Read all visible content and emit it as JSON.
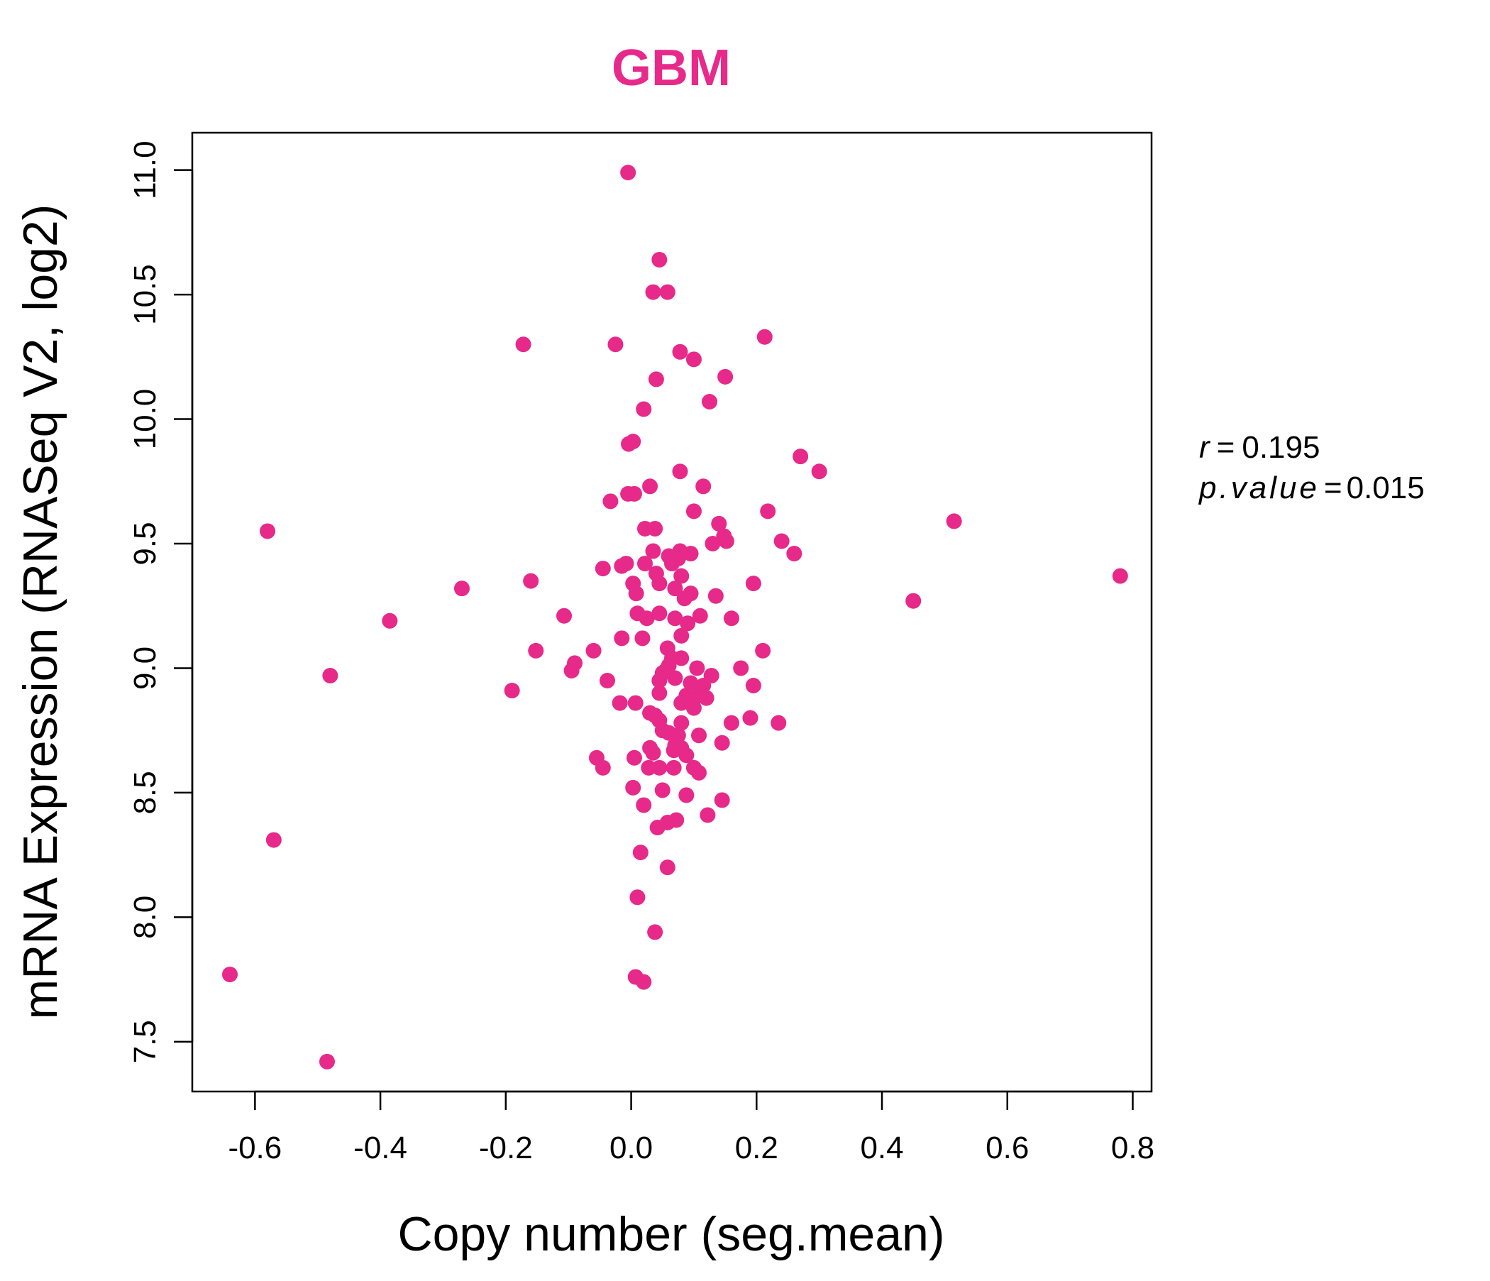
{
  "chart_data": {
    "type": "scatter",
    "title": "GBM",
    "xlabel": "Copy number (seg.mean)",
    "ylabel": "mRNA Expression (RNASeq V2, log2)",
    "xlim": [
      -0.7,
      0.83
    ],
    "ylim": [
      7.3,
      11.15
    ],
    "xticks": [
      "-0.6",
      "-0.4",
      "-0.2",
      "0.0",
      "0.2",
      "0.4",
      "0.6",
      "0.8"
    ],
    "xtick_values": [
      -0.6,
      -0.4,
      -0.2,
      0.0,
      0.2,
      0.4,
      0.6,
      0.8
    ],
    "yticks": [
      "7.5",
      "8.0",
      "8.5",
      "9.0",
      "9.5",
      "10.0",
      "10.5",
      "11.0"
    ],
    "ytick_values": [
      7.5,
      8.0,
      8.5,
      9.0,
      9.5,
      10.0,
      10.5,
      11.0
    ],
    "grid": false,
    "colors": {
      "points": "#E7298A",
      "title": "#E7298A",
      "axis": "#000000"
    },
    "stats": {
      "r_label": "r",
      "r_value": "0.195",
      "p_label": "p.value",
      "p_value": "0.015"
    },
    "series": [
      {
        "points": [
          [
            -0.005,
            10.99
          ],
          [
            0.045,
            10.64
          ],
          [
            0.035,
            10.51
          ],
          [
            0.058,
            10.51
          ],
          [
            -0.172,
            10.3
          ],
          [
            -0.025,
            10.3
          ],
          [
            0.213,
            10.33
          ],
          [
            0.078,
            10.27
          ],
          [
            0.1,
            10.24
          ],
          [
            0.04,
            10.16
          ],
          [
            0.15,
            10.17
          ],
          [
            0.125,
            10.07
          ],
          [
            0.02,
            10.04
          ],
          [
            0.003,
            9.91
          ],
          [
            -0.004,
            9.9
          ],
          [
            0.27,
            9.85
          ],
          [
            0.3,
            9.79
          ],
          [
            0.078,
            9.79
          ],
          [
            0.03,
            9.73
          ],
          [
            0.115,
            9.73
          ],
          [
            0.005,
            9.7
          ],
          [
            -0.005,
            9.7
          ],
          [
            -0.033,
            9.67
          ],
          [
            0.218,
            9.63
          ],
          [
            0.1,
            9.63
          ],
          [
            0.515,
            9.59
          ],
          [
            -0.58,
            9.55
          ],
          [
            0.022,
            9.56
          ],
          [
            0.038,
            9.56
          ],
          [
            0.14,
            9.58
          ],
          [
            0.148,
            9.53
          ],
          [
            0.152,
            9.51
          ],
          [
            0.13,
            9.5
          ],
          [
            0.24,
            9.51
          ],
          [
            0.26,
            9.46
          ],
          [
            0.035,
            9.47
          ],
          [
            0.078,
            9.47
          ],
          [
            0.095,
            9.46
          ],
          [
            0.06,
            9.45
          ],
          [
            0.065,
            9.42
          ],
          [
            0.075,
            9.44
          ],
          [
            -0.008,
            9.42
          ],
          [
            -0.015,
            9.41
          ],
          [
            -0.045,
            9.4
          ],
          [
            0.022,
            9.42
          ],
          [
            0.04,
            9.38
          ],
          [
            0.08,
            9.37
          ],
          [
            0.78,
            9.37
          ],
          [
            -0.16,
            9.35
          ],
          [
            -0.27,
            9.32
          ],
          [
            0.003,
            9.34
          ],
          [
            0.045,
            9.34
          ],
          [
            0.07,
            9.32
          ],
          [
            0.195,
            9.34
          ],
          [
            0.095,
            9.3
          ],
          [
            0.135,
            9.29
          ],
          [
            0.008,
            9.3
          ],
          [
            0.085,
            9.28
          ],
          [
            0.45,
            9.27
          ],
          [
            0.01,
            9.22
          ],
          [
            0.025,
            9.2
          ],
          [
            0.045,
            9.22
          ],
          [
            0.07,
            9.2
          ],
          [
            0.09,
            9.18
          ],
          [
            0.11,
            9.21
          ],
          [
            0.16,
            9.2
          ],
          [
            -0.107,
            9.21
          ],
          [
            -0.385,
            9.19
          ],
          [
            0.08,
            9.13
          ],
          [
            -0.015,
            9.12
          ],
          [
            0.018,
            9.12
          ],
          [
            0.21,
            9.07
          ],
          [
            0.058,
            9.08
          ],
          [
            -0.152,
            9.07
          ],
          [
            -0.06,
            9.07
          ],
          [
            0.065,
            9.04
          ],
          [
            0.08,
            9.04
          ],
          [
            0.06,
            9.01
          ],
          [
            -0.09,
            9.02
          ],
          [
            -0.095,
            8.99
          ],
          [
            0.105,
            9.0
          ],
          [
            0.055,
            8.99
          ],
          [
            0.175,
            9.0
          ],
          [
            0.05,
            8.98
          ],
          [
            0.128,
            8.97
          ],
          [
            -0.48,
            8.97
          ],
          [
            0.07,
            8.96
          ],
          [
            -0.038,
            8.95
          ],
          [
            0.045,
            8.95
          ],
          [
            0.095,
            8.94
          ],
          [
            0.115,
            8.93
          ],
          [
            0.195,
            8.93
          ],
          [
            -0.19,
            8.91
          ],
          [
            0.045,
            8.9
          ],
          [
            0.088,
            8.89
          ],
          [
            0.108,
            8.89
          ],
          [
            0.12,
            8.88
          ],
          [
            0.007,
            8.86
          ],
          [
            -0.018,
            8.86
          ],
          [
            0.08,
            8.86
          ],
          [
            0.1,
            8.84
          ],
          [
            0.03,
            8.82
          ],
          [
            0.038,
            8.81
          ],
          [
            0.19,
            8.8
          ],
          [
            0.045,
            8.79
          ],
          [
            0.08,
            8.78
          ],
          [
            0.16,
            8.78
          ],
          [
            0.235,
            8.78
          ],
          [
            0.05,
            8.75
          ],
          [
            0.06,
            8.74
          ],
          [
            0.075,
            8.73
          ],
          [
            0.108,
            8.73
          ],
          [
            0.145,
            8.7
          ],
          [
            0.07,
            8.69
          ],
          [
            0.03,
            8.68
          ],
          [
            0.035,
            8.66
          ],
          [
            0.068,
            8.67
          ],
          [
            0.08,
            8.68
          ],
          [
            0.088,
            8.65
          ],
          [
            0.005,
            8.64
          ],
          [
            -0.055,
            8.64
          ],
          [
            -0.045,
            8.6
          ],
          [
            0.028,
            8.6
          ],
          [
            0.045,
            8.6
          ],
          [
            0.068,
            8.6
          ],
          [
            0.1,
            8.6
          ],
          [
            0.108,
            8.58
          ],
          [
            0.003,
            8.52
          ],
          [
            0.05,
            8.51
          ],
          [
            0.088,
            8.49
          ],
          [
            0.145,
            8.47
          ],
          [
            0.02,
            8.45
          ],
          [
            0.122,
            8.41
          ],
          [
            0.072,
            8.39
          ],
          [
            0.058,
            8.38
          ],
          [
            0.042,
            8.36
          ],
          [
            -0.57,
            8.31
          ],
          [
            0.015,
            8.26
          ],
          [
            0.058,
            8.2
          ],
          [
            0.01,
            8.08
          ],
          [
            0.038,
            7.94
          ],
          [
            -0.64,
            7.77
          ],
          [
            0.007,
            7.76
          ],
          [
            0.02,
            7.74
          ],
          [
            -0.485,
            7.42
          ]
        ]
      }
    ]
  }
}
